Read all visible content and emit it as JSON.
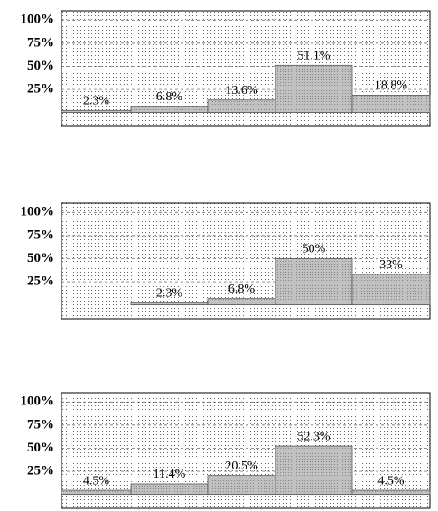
{
  "chart_data": [
    {
      "type": "bar",
      "categories": [
        null,
        null,
        null,
        null,
        null
      ],
      "values": [
        2.3,
        6.8,
        13.6,
        51.1,
        18.8
      ],
      "value_labels": [
        "2.3%",
        "6.8%",
        "13.6%",
        "51.1%",
        "18.8%"
      ],
      "color": "#c0c0c0",
      "ylim": [
        -15,
        110
      ],
      "yticks": [
        {
          "value": 25,
          "label": "25%"
        },
        {
          "value": 50,
          "label": "50%"
        },
        {
          "value": 75,
          "label": "75%"
        },
        {
          "value": 100,
          "label": "100%"
        }
      ],
      "grid": true
    },
    {
      "type": "bar",
      "categories": [
        null,
        null,
        null,
        null,
        null
      ],
      "values": [
        null,
        2.3,
        6.8,
        50,
        33
      ],
      "value_labels": [
        null,
        "2.3%",
        "6.8%",
        "50%",
        "33%"
      ],
      "color": "#c0c0c0",
      "ylim": [
        -15,
        110
      ],
      "yticks": [
        {
          "value": 25,
          "label": "25%"
        },
        {
          "value": 50,
          "label": "50%"
        },
        {
          "value": 75,
          "label": "75%"
        },
        {
          "value": 100,
          "label": "100%"
        }
      ],
      "grid": true
    },
    {
      "type": "bar",
      "categories": [
        null,
        null,
        null,
        null,
        null
      ],
      "values": [
        4.5,
        11.4,
        20.5,
        52.3,
        4.5
      ],
      "value_labels": [
        "4.5%",
        "11.4%",
        "20.5%",
        "52.3%",
        "4.5%"
      ],
      "color": "#c0c0c0",
      "ylim": [
        -15,
        110
      ],
      "yticks": [
        {
          "value": 25,
          "label": "25%"
        },
        {
          "value": 50,
          "label": "50%"
        },
        {
          "value": 75,
          "label": "75%"
        },
        {
          "value": 100,
          "label": "100%"
        }
      ],
      "grid": true
    }
  ]
}
